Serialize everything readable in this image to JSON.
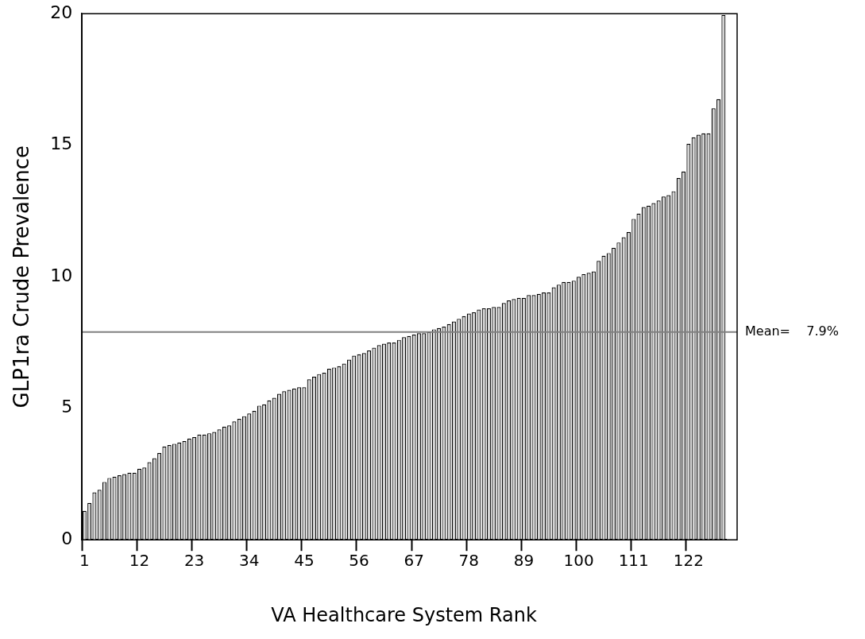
{
  "chart_data": {
    "type": "bar",
    "xlabel": "VA Healthcare System Rank",
    "ylabel": "GLP1ra Crude Prevalence",
    "categories": [
      "1",
      null,
      null,
      null,
      null,
      null,
      null,
      null,
      null,
      null,
      null,
      "12",
      null,
      null,
      null,
      null,
      null,
      null,
      null,
      null,
      null,
      null,
      "23",
      null,
      null,
      null,
      null,
      null,
      null,
      null,
      null,
      null,
      null,
      "34",
      null,
      null,
      null,
      null,
      null,
      null,
      null,
      null,
      null,
      null,
      "45",
      null,
      null,
      null,
      null,
      null,
      null,
      null,
      null,
      null,
      null,
      "56",
      null,
      null,
      null,
      null,
      null,
      null,
      null,
      null,
      null,
      null,
      "67",
      null,
      null,
      null,
      null,
      null,
      null,
      null,
      null,
      null,
      null,
      "78",
      null,
      null,
      null,
      null,
      null,
      null,
      null,
      null,
      null,
      null,
      "89",
      null,
      null,
      null,
      null,
      null,
      null,
      null,
      null,
      null,
      null,
      "100",
      null,
      null,
      null,
      null,
      null,
      null,
      null,
      null,
      null,
      null,
      "111",
      null,
      null,
      null,
      null,
      null,
      null,
      null,
      null,
      null,
      null,
      "122",
      null,
      null,
      null,
      null,
      null,
      null,
      null
    ],
    "series": [
      {
        "color": "#d3d3d3",
        "values": [
          1.1,
          1.4,
          1.8,
          1.9,
          2.2,
          2.35,
          2.4,
          2.45,
          2.5,
          2.55,
          2.55,
          2.7,
          2.75,
          2.95,
          3.1,
          3.3,
          3.55,
          3.6,
          3.65,
          3.7,
          3.75,
          3.85,
          3.9,
          4.0,
          4.0,
          4.05,
          4.1,
          4.2,
          4.3,
          4.35,
          4.5,
          4.6,
          4.7,
          4.8,
          4.9,
          5.1,
          5.15,
          5.3,
          5.4,
          5.55,
          5.65,
          5.7,
          5.75,
          5.8,
          5.8,
          6.1,
          6.2,
          6.3,
          6.35,
          6.5,
          6.55,
          6.6,
          6.7,
          6.85,
          7.0,
          7.05,
          7.1,
          7.2,
          7.3,
          7.4,
          7.45,
          7.5,
          7.5,
          7.6,
          7.7,
          7.75,
          7.8,
          7.85,
          7.85,
          7.9,
          8.0,
          8.05,
          8.1,
          8.2,
          8.3,
          8.4,
          8.5,
          8.6,
          8.65,
          8.75,
          8.8,
          8.8,
          8.85,
          8.85,
          9.0,
          9.1,
          9.15,
          9.2,
          9.2,
          9.3,
          9.3,
          9.35,
          9.4,
          9.4,
          9.6,
          9.7,
          9.8,
          9.8,
          9.85,
          10.0,
          10.1,
          10.15,
          10.2,
          10.6,
          10.8,
          10.9,
          11.1,
          11.3,
          11.5,
          11.7,
          12.2,
          12.4,
          12.65,
          12.7,
          12.8,
          12.9,
          13.05,
          13.1,
          13.25,
          13.75,
          14.0,
          15.05,
          15.3,
          15.4,
          15.45,
          15.45,
          16.4,
          16.75,
          19.95
        ]
      }
    ],
    "ylim": [
      0,
      20
    ],
    "yticks": [
      0,
      5,
      10,
      15,
      20
    ],
    "ref_lines": [
      {
        "axis": "y",
        "value": 7.9,
        "label": "Mean=    7.9%",
        "color": "#808080"
      }
    ]
  }
}
